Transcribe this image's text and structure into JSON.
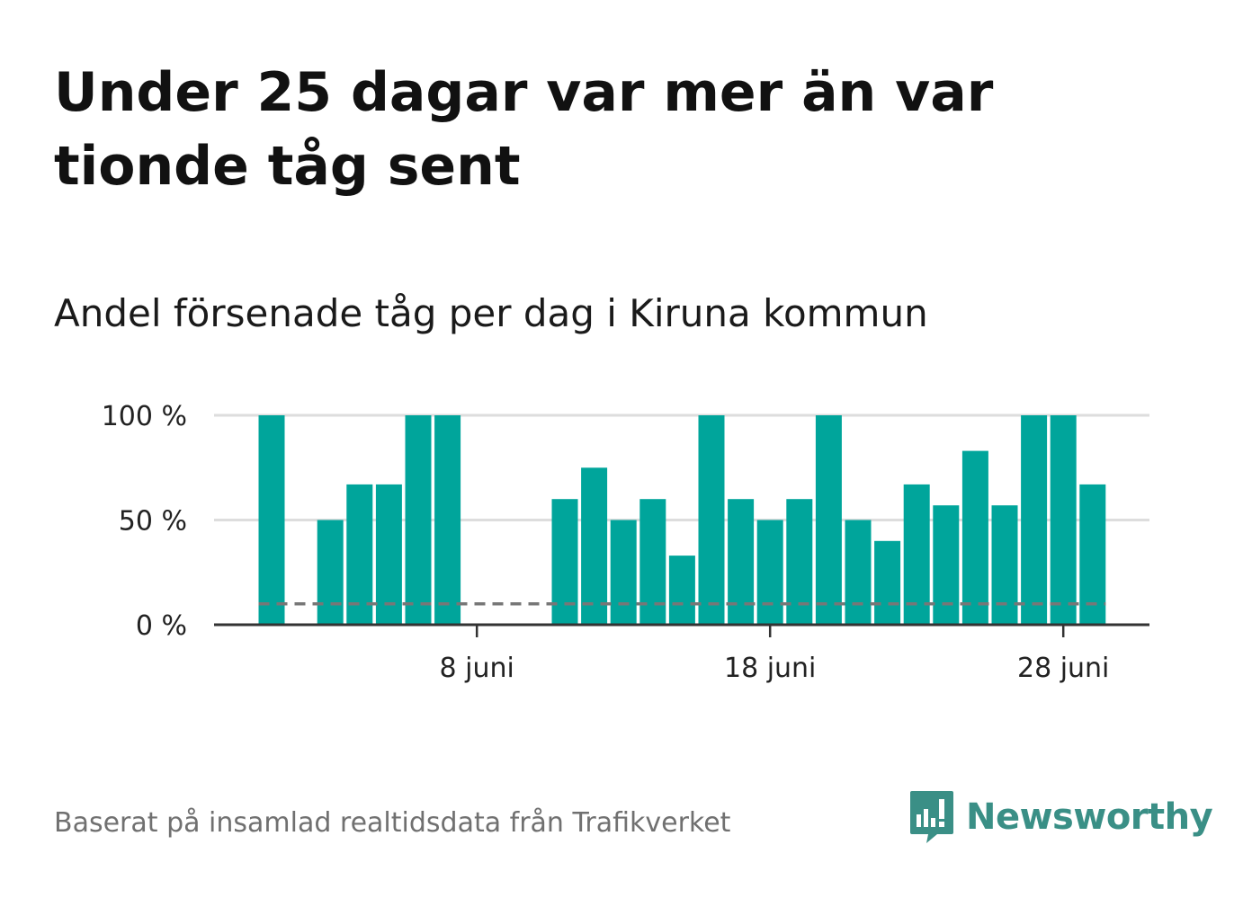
{
  "header": {
    "title": "Under 25 dagar var mer än var tionde tåg sent",
    "subtitle": "Andel försenade tåg per dag i Kiruna kommun"
  },
  "footer": {
    "source": "Baserat på insamlad realtidsdata från Trafikverket",
    "brand": "Newsworthy"
  },
  "colors": {
    "bar": "#00a59b",
    "grid": "#dddddd",
    "axis": "#333333",
    "reference_line": "#777777",
    "brand": "#3a8f86"
  },
  "chart_data": {
    "type": "bar",
    "xlabel": "",
    "ylabel": "",
    "x": [
      "1 juni",
      "2 juni",
      "3 juni",
      "4 juni",
      "5 juni",
      "6 juni",
      "7 juni",
      "8 juni",
      "9 juni",
      "10 juni",
      "11 juni",
      "12 juni",
      "13 juni",
      "14 juni",
      "15 juni",
      "16 juni",
      "17 juni",
      "18 juni",
      "19 juni",
      "20 juni",
      "21 juni",
      "22 juni",
      "23 juni",
      "24 juni",
      "25 juni",
      "26 juni",
      "27 juni",
      "28 juni",
      "29 juni"
    ],
    "values": [
      100,
      0,
      50,
      67,
      67,
      100,
      100,
      0,
      0,
      0,
      60,
      75,
      50,
      60,
      33,
      100,
      60,
      50,
      60,
      100,
      50,
      40,
      67,
      57,
      83,
      57,
      100,
      100,
      67
    ],
    "value_unit": "%",
    "ylim": [
      0,
      100
    ],
    "y_ticks": [
      {
        "value": 0,
        "label": "0 %"
      },
      {
        "value": 50,
        "label": "50 %"
      },
      {
        "value": 100,
        "label": "100 %"
      }
    ],
    "x_ticks": [
      {
        "day": 8,
        "label": "8 juni"
      },
      {
        "day": 18,
        "label": "18 juni"
      },
      {
        "day": 28,
        "label": "28 juni"
      }
    ],
    "reference_line": {
      "value": 10,
      "style": "dashed"
    },
    "grid": true
  }
}
